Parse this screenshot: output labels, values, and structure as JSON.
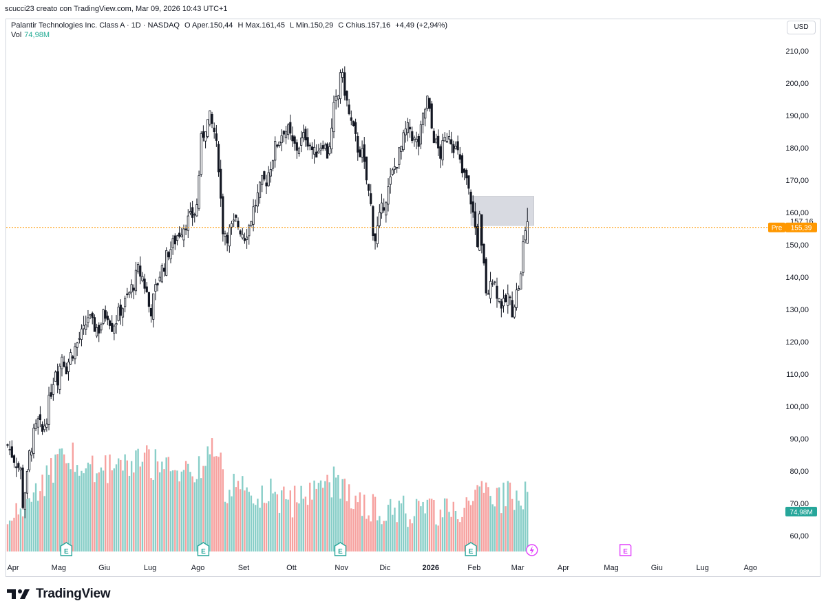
{
  "header": {
    "attribution": "scucci23 creato con TradingView.com, Mar 09, 2026 10:43 UTC+1"
  },
  "legend": {
    "symbol": "Palantir Technologies Inc. Class A · 1D · NASDAQ",
    "open_label": "O",
    "open_value": "Aper.150,44",
    "high_label": "H",
    "high_value": "Max.161,45",
    "low_label": "L",
    "low_value": "Min.150,29",
    "close_label": "C",
    "close_value": "Chius.157,16",
    "change": "+4,49 (+2,94%)",
    "volume_label": "Vol",
    "volume_value": "74,98M"
  },
  "currency": "USD",
  "price_tags": {
    "last_value": "157,16",
    "pre_label": "Pre",
    "pre_value": "155,39",
    "volume_tag": "74,98M"
  },
  "brand": {
    "name": "TradingView"
  },
  "colors": {
    "up": "#26a69a",
    "down": "#ef5350",
    "pre_line": "#ff9800",
    "zone": "#d1d4dc",
    "earnings": "#26a69a",
    "event": "#e040fb"
  },
  "chart_data": {
    "type": "candlestick",
    "y_axis": {
      "ticks": [
        "210,00",
        "200,00",
        "190,00",
        "180,00",
        "170,00",
        "160,00",
        "150,00",
        "140,00",
        "130,00",
        "120,00",
        "110,00",
        "100,00",
        "90,00",
        "80,00",
        "70,00",
        "60,00"
      ],
      "tick_values": [
        210,
        200,
        190,
        180,
        170,
        160,
        150,
        140,
        130,
        120,
        110,
        100,
        90,
        80,
        70,
        60
      ],
      "range": [
        53,
        220
      ]
    },
    "x_axis": {
      "labels": [
        "Apr",
        "Mag",
        "Giu",
        "Lug",
        "Ago",
        "Set",
        "Ott",
        "Nov",
        "Dic",
        "2026",
        "Feb",
        "Mar",
        "Apr",
        "Mag",
        "Giu",
        "Lug",
        "Ago"
      ],
      "month_index": [
        0,
        21,
        42,
        63,
        85,
        106,
        128,
        151,
        171,
        192,
        212,
        232,
        253,
        275,
        296,
        317,
        339
      ]
    },
    "last_close": 157.16,
    "pre_market": 155.39,
    "resistance_zone": {
      "from": 156.0,
      "to": 165.0,
      "start_index": 213,
      "end_index": 242
    },
    "earnings_markers": [
      27,
      90,
      153,
      213
    ],
    "dividend_marker_index": 236,
    "upcoming_earnings_index": 279,
    "anchors": [
      [
        0,
        88
      ],
      [
        3,
        84
      ],
      [
        6,
        80
      ],
      [
        7,
        70
      ],
      [
        9,
        78
      ],
      [
        10,
        85
      ],
      [
        12,
        91
      ],
      [
        14,
        95
      ],
      [
        16,
        92
      ],
      [
        18,
        97
      ],
      [
        20,
        105
      ],
      [
        22,
        112
      ],
      [
        23,
        109
      ],
      [
        25,
        116
      ],
      [
        27,
        112
      ],
      [
        29,
        116
      ],
      [
        31,
        118
      ],
      [
        33,
        121
      ],
      [
        35,
        123
      ],
      [
        37,
        128
      ],
      [
        39,
        125
      ],
      [
        42,
        124
      ],
      [
        44,
        128
      ],
      [
        46,
        129
      ],
      [
        48,
        125
      ],
      [
        50,
        127
      ],
      [
        52,
        130
      ],
      [
        54,
        132
      ],
      [
        56,
        135
      ],
      [
        58,
        138
      ],
      [
        60,
        142
      ],
      [
        62,
        140
      ],
      [
        64,
        135
      ],
      [
        65,
        131
      ],
      [
        66,
        130
      ],
      [
        68,
        136
      ],
      [
        70,
        141
      ],
      [
        72,
        144
      ],
      [
        74,
        148
      ],
      [
        76,
        150
      ],
      [
        78,
        153
      ],
      [
        80,
        155
      ],
      [
        82,
        157
      ],
      [
        84,
        158
      ],
      [
        86,
        160
      ],
      [
        87,
        162
      ],
      [
        89,
        182
      ],
      [
        91,
        187
      ],
      [
        93,
        189
      ],
      [
        95,
        185
      ],
      [
        97,
        175
      ],
      [
        98,
        164
      ],
      [
        99,
        155
      ],
      [
        101,
        153
      ],
      [
        103,
        155
      ],
      [
        105,
        157
      ],
      [
        107,
        155
      ],
      [
        109,
        153
      ],
      [
        111,
        156
      ],
      [
        113,
        161
      ],
      [
        115,
        165
      ],
      [
        117,
        169
      ],
      [
        119,
        170
      ],
      [
        121,
        175
      ],
      [
        123,
        180
      ],
      [
        125,
        183
      ],
      [
        127,
        186
      ],
      [
        129,
        185
      ],
      [
        131,
        181
      ],
      [
        133,
        180
      ],
      [
        135,
        182
      ],
      [
        137,
        184
      ],
      [
        139,
        181
      ],
      [
        141,
        178
      ],
      [
        143,
        180
      ],
      [
        145,
        182
      ],
      [
        147,
        178
      ],
      [
        149,
        185
      ],
      [
        150,
        192
      ],
      [
        152,
        196
      ],
      [
        153,
        204
      ],
      [
        155,
        198
      ],
      [
        157,
        190
      ],
      [
        159,
        185
      ],
      [
        161,
        180
      ],
      [
        163,
        178
      ],
      [
        165,
        170
      ],
      [
        167,
        162
      ],
      [
        168,
        155
      ],
      [
        169,
        152
      ],
      [
        171,
        158
      ],
      [
        173,
        163
      ],
      [
        175,
        167
      ],
      [
        177,
        172
      ],
      [
        179,
        176
      ],
      [
        181,
        180
      ],
      [
        183,
        185
      ],
      [
        185,
        186
      ],
      [
        187,
        182
      ],
      [
        189,
        181
      ],
      [
        191,
        189
      ],
      [
        193,
        195
      ],
      [
        195,
        186
      ],
      [
        197,
        181
      ],
      [
        199,
        178
      ],
      [
        201,
        182
      ],
      [
        203,
        185
      ],
      [
        205,
        181
      ],
      [
        207,
        178
      ],
      [
        209,
        172
      ],
      [
        211,
        170
      ],
      [
        212,
        166
      ],
      [
        213,
        164
      ],
      [
        215,
        155
      ],
      [
        216,
        151
      ],
      [
        217,
        158
      ],
      [
        218,
        148
      ],
      [
        219,
        143
      ],
      [
        220,
        136
      ],
      [
        221,
        133
      ],
      [
        222,
        141
      ],
      [
        224,
        138
      ],
      [
        226,
        133
      ],
      [
        228,
        131
      ],
      [
        230,
        134
      ],
      [
        232,
        130
      ],
      [
        234,
        135
      ],
      [
        236,
        140
      ],
      [
        237,
        150
      ],
      [
        238,
        155
      ],
      [
        239,
        157
      ]
    ],
    "volume_anchors": [
      [
        0,
        68
      ],
      [
        27,
        90
      ],
      [
        44,
        85
      ],
      [
        64,
        88
      ],
      [
        87,
        82
      ],
      [
        90,
        90
      ],
      [
        97,
        92
      ],
      [
        100,
        80
      ],
      [
        120,
        78
      ],
      [
        130,
        75
      ],
      [
        150,
        82
      ],
      [
        170,
        72
      ],
      [
        195,
        73
      ],
      [
        212,
        72
      ],
      [
        215,
        84
      ],
      [
        218,
        80
      ],
      [
        222,
        76
      ],
      [
        239,
        78
      ]
    ]
  }
}
